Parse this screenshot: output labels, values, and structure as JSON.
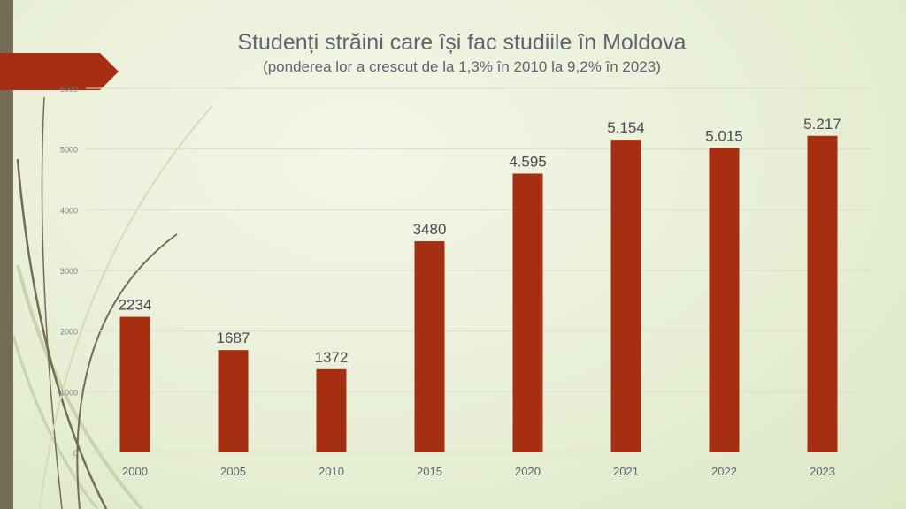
{
  "chart_data": {
    "type": "bar",
    "title": "Studenți străini care își fac studiile în Moldova",
    "subtitle": "(ponderea lor a crescut de la 1,3% în 2010 la 9,2% în 2023)",
    "categories": [
      "2000",
      "2005",
      "2010",
      "2015",
      "2020",
      "2021",
      "2022",
      "2023"
    ],
    "values": [
      2234,
      1687,
      1372,
      3480,
      4595,
      5154,
      5015,
      5217
    ],
    "data_labels": [
      "2234",
      "1687",
      "1372",
      "3480",
      "4.595",
      "5.154",
      "5.015",
      "5.217"
    ],
    "yticks": [
      "0",
      "1000",
      "2000",
      "3000",
      "4000",
      "5000",
      "6000"
    ],
    "ylim": [
      0,
      6000
    ],
    "xlabel": "",
    "ylabel": "",
    "grid": true,
    "bar_color": "#a52f10"
  }
}
